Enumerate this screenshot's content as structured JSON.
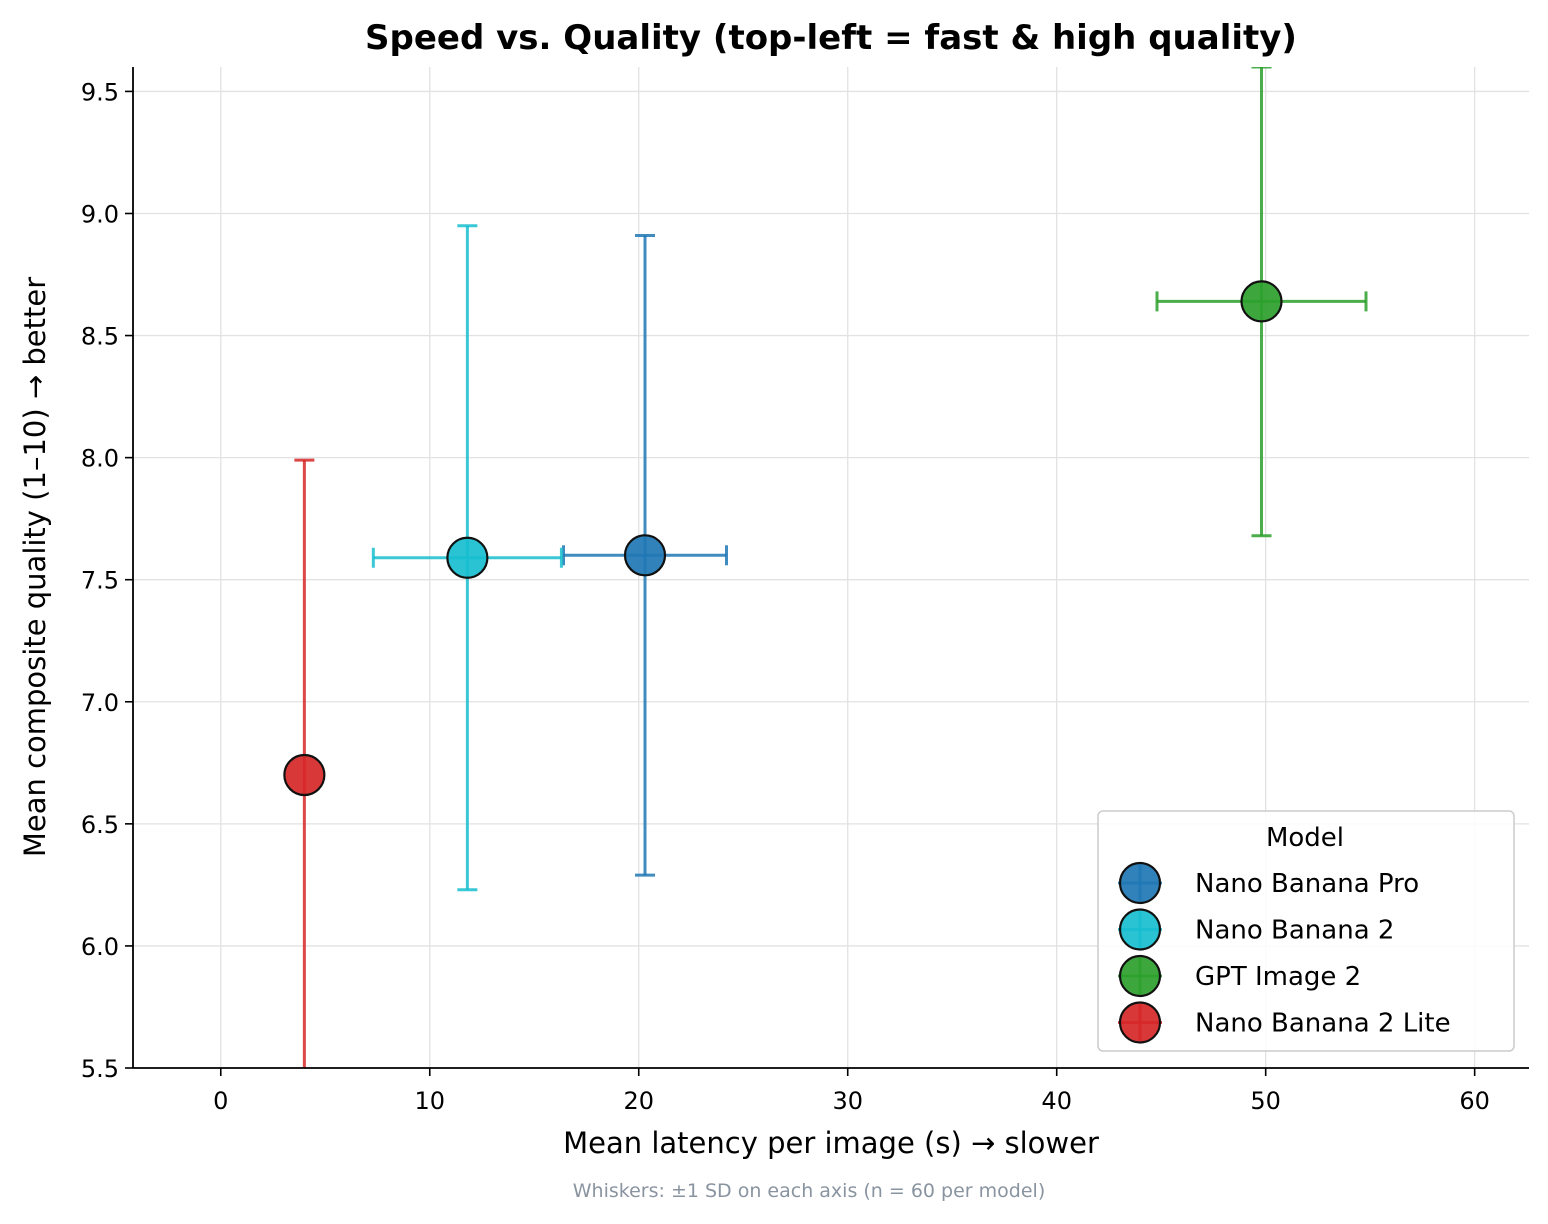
{
  "chart_data": {
    "type": "scatter",
    "title": "Speed vs. Quality  (top-left = fast & high quality)",
    "xlabel": "Mean latency per image (s)  →  slower",
    "ylabel": "Mean composite quality (1–10)  →  better",
    "xlim": [
      -4.2,
      62.6
    ],
    "ylim": [
      5.5,
      9.6
    ],
    "xticks": [
      0,
      10,
      20,
      30,
      40,
      50,
      60
    ],
    "yticks": [
      5.5,
      6.0,
      6.5,
      7.0,
      7.5,
      8.0,
      8.5,
      9.0,
      9.5
    ],
    "grid": true,
    "legend": {
      "title": "Model",
      "placement": "bottom-right"
    },
    "footnote": "Whiskers: ±1 SD on each axis (n = 60 per model)",
    "series": [
      {
        "name": "Nano Banana Pro",
        "color": "#1f77b4",
        "x": 20.3,
        "y": 7.6,
        "x_sd": 3.9,
        "y_sd": 1.31
      },
      {
        "name": "Nano Banana 2",
        "color": "#17becf",
        "x": 11.8,
        "y": 7.59,
        "x_sd": 4.5,
        "y_sd": 1.36
      },
      {
        "name": "GPT Image 2",
        "color": "#2ca02c",
        "x": 49.8,
        "y": 8.64,
        "x_sd": 5.0,
        "y_sd": 0.96
      },
      {
        "name": "Nano Banana 2 Lite",
        "color": "#d62728",
        "x": 4.0,
        "y": 6.7,
        "x_sd": 0,
        "y_sd": 1.29
      }
    ]
  }
}
